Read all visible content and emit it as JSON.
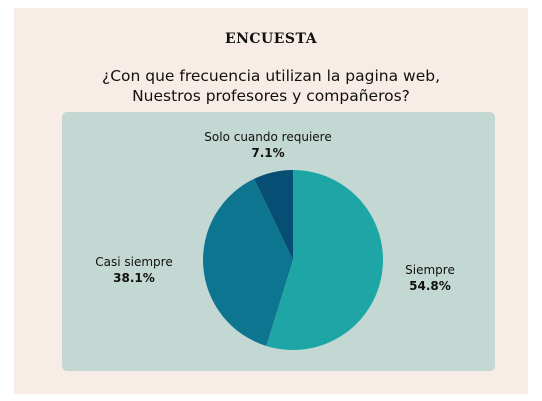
{
  "header": {
    "title": "ENCUESTA",
    "question_line1": "¿Con que frecuencia utilizan la pagina web,",
    "question_line2": "Nuestros profesores y compañeros?"
  },
  "chart_data": {
    "type": "pie",
    "slices": [
      {
        "label": "Siempre",
        "value": 54.8,
        "value_label": "54.8%",
        "color": "#1ea6a6"
      },
      {
        "label": "Casi siempre",
        "value": 38.1,
        "value_label": "38.1%",
        "color": "#0e7590"
      },
      {
        "label": "Solo cuando requiere",
        "value": 7.1,
        "value_label": "7.1%",
        "color": "#064e74"
      }
    ],
    "start_angle_deg": 0,
    "direction": "clockwise",
    "legend": "none",
    "background_color": "#c3d8d3"
  }
}
